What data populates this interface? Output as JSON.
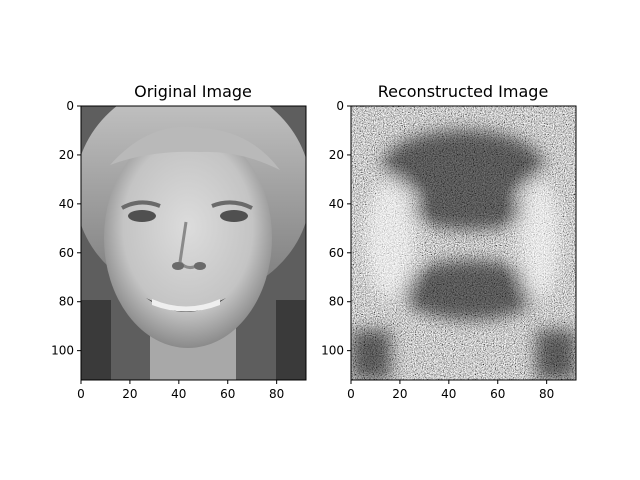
{
  "chart_data": [
    {
      "type": "heatmap",
      "title": "Original Image",
      "colormap": "gray",
      "image_shape": [
        112,
        92
      ],
      "xlim": [
        0,
        92
      ],
      "ylim": [
        112,
        0
      ],
      "xticks": [
        "0",
        "20",
        "40",
        "60",
        "80"
      ],
      "yticks": [
        "0",
        "20",
        "40",
        "60",
        "80",
        "100"
      ],
      "content": "grayscale face photograph"
    },
    {
      "type": "heatmap",
      "title": "Reconstructed Image",
      "colormap": "gray",
      "image_shape": [
        112,
        92
      ],
      "xlim": [
        0,
        92
      ],
      "ylim": [
        112,
        0
      ],
      "xticks": [
        "0",
        "20",
        "40",
        "60",
        "80"
      ],
      "yticks": [
        "0",
        "20",
        "40",
        "60",
        "80",
        "100"
      ],
      "content": "noisy grayscale reconstruction with faint face structure"
    }
  ]
}
